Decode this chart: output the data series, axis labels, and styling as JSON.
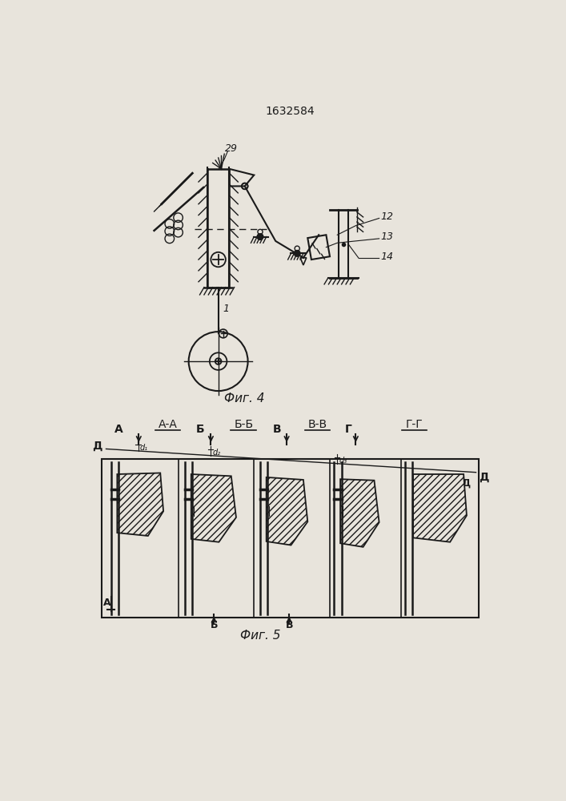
{
  "title": "1632584",
  "fig4_caption": "Фиг. 4",
  "fig5_caption": "Фиг. 5",
  "bg_color": "#e8e4dc",
  "line_color": "#1a1a1a"
}
